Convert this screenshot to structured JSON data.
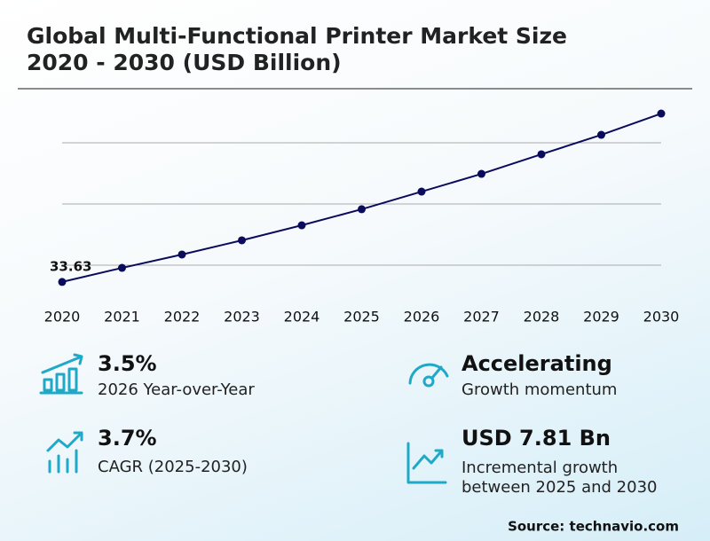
{
  "chart_data": {
    "type": "line",
    "title": [
      "Global Multi-Functional Printer Market Size",
      "2020 - 2030 (USD Billion)"
    ],
    "x": [
      2020,
      2021,
      2022,
      2023,
      2024,
      2025,
      2026,
      2027,
      2028,
      2029,
      2030
    ],
    "xlim": [
      2020,
      2030
    ],
    "series": [
      {
        "color": "#0b0b5c",
        "values": [
          33.63,
          34.78,
          35.87,
          37.03,
          38.26,
          39.57,
          41.01,
          42.46,
          44.06,
          45.65,
          47.39
        ]
      }
    ],
    "labeled_points": [
      0
    ],
    "ylim": [
      32.5,
      49.5
    ],
    "yticks": [
      35,
      40,
      45
    ],
    "grid": true
  },
  "highlights": [
    {
      "value": "3.5%",
      "label": "2026 Year-over-Year"
    },
    {
      "value": "Accelerating",
      "label": "Growth momentum"
    },
    {
      "value": "3.7%",
      "label": "CAGR (2025-2030)"
    },
    {
      "value": "USD 7.81 Bn",
      "label": [
        "Incremental growth",
        "between 2025 and 2030"
      ]
    }
  ],
  "source": "Source: technavio.com"
}
